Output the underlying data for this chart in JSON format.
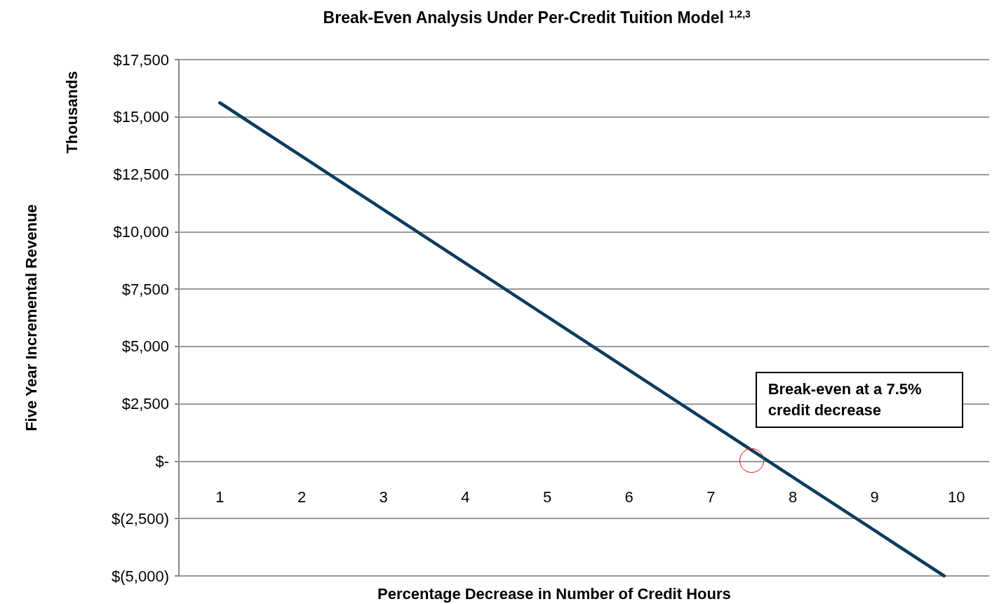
{
  "chart_data": {
    "type": "line",
    "title": "Break-Even Analysis Under Per-Credit Tuition Model $^{1,2,3}$",
    "xlabel": "Percentage Decrease in Number of Credit Hours",
    "ylabel": "Five Year Incremental Revenue",
    "annotations": [
      "Thousands",
      {
        "text": "Break-even at a 7.5% credit decrease",
        "x": 7.5,
        "y": 0
      }
    ],
    "series": [
      {
        "color": "#0b3c5d",
        "x": [
          1,
          2,
          3,
          4,
          5,
          6,
          7,
          8,
          9,
          9.85
        ],
        "values": [
          15620,
          13290,
          10960,
          8630,
          6300,
          3970,
          1640,
          -690,
          -3020,
          -5000
        ]
      }
    ],
    "xlim": [
      0.5,
      10.4
    ],
    "xticks": [
      1,
      2,
      3,
      4,
      5,
      6,
      7,
      8,
      9,
      10
    ],
    "ylim": [
      -5000,
      17500
    ],
    "yticks": [
      {
        "value": -5000,
        "label": "$(5,000)"
      },
      {
        "value": -2500,
        "label": "$(2,500)"
      },
      {
        "value": 0,
        "label": "$-"
      },
      {
        "value": 2500,
        "label": "$2,500"
      },
      {
        "value": 5000,
        "label": "$5,000"
      },
      {
        "value": 7500,
        "label": "$7,500"
      },
      {
        "value": 10000,
        "label": "$10,000"
      },
      {
        "value": 12500,
        "label": "$12,500"
      },
      {
        "value": 15000,
        "label": "$15,000"
      },
      {
        "value": 17500,
        "label": "$17,500"
      }
    ],
    "grid": "y",
    "marker": "none",
    "line_style": "solid"
  }
}
